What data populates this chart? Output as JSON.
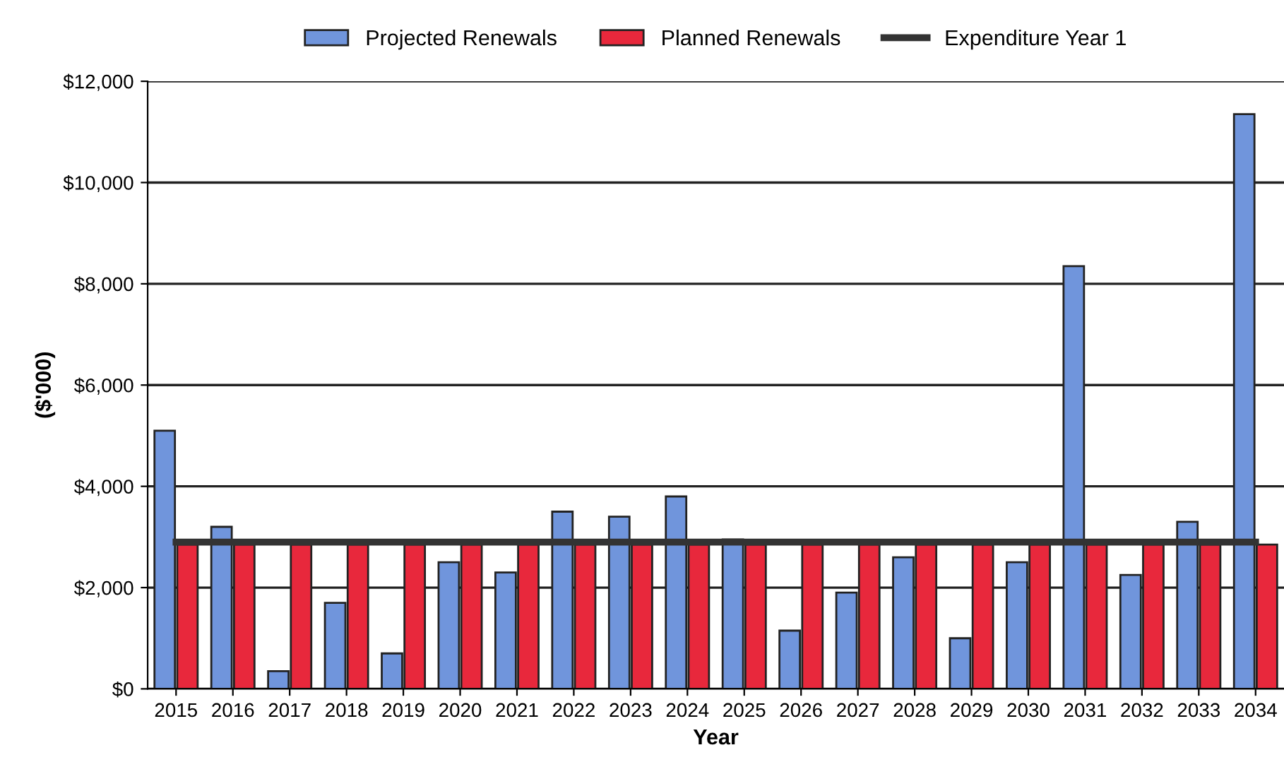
{
  "chart_data": {
    "type": "bar",
    "xlabel": "Year",
    "ylabel": "($'000)",
    "categories": [
      "2015",
      "2016",
      "2017",
      "2018",
      "2019",
      "2020",
      "2021",
      "2022",
      "2023",
      "2024",
      "2025",
      "2026",
      "2027",
      "2028",
      "2029",
      "2030",
      "2031",
      "2032",
      "2033",
      "2034"
    ],
    "series": [
      {
        "name": "Projected Renewals",
        "color": "#7095dc",
        "values": [
          5100,
          3200,
          350,
          1700,
          700,
          2500,
          2300,
          3500,
          3400,
          3800,
          2950,
          1150,
          1900,
          2600,
          1000,
          2500,
          8350,
          2250,
          3300,
          11350
        ]
      },
      {
        "name": "Planned Renewals",
        "color": "#e8283c",
        "values": [
          2850,
          2850,
          2850,
          2850,
          2850,
          2850,
          2850,
          2850,
          2850,
          2850,
          2850,
          2850,
          2850,
          2850,
          2850,
          2850,
          2850,
          2850,
          2850,
          2850
        ]
      },
      {
        "name": "Expenditure Year 1",
        "type": "line",
        "color": "#333333",
        "values": [
          2900,
          2900,
          2900,
          2900,
          2900,
          2900,
          2900,
          2900,
          2900,
          2900,
          2900,
          2900,
          2900,
          2900,
          2900,
          2900,
          2900,
          2900,
          2900,
          2900
        ]
      }
    ],
    "ylim": [
      0,
      12000
    ],
    "yticks": [
      {
        "value": 0,
        "label": "$0"
      },
      {
        "value": 2000,
        "label": "$2,000"
      },
      {
        "value": 4000,
        "label": "$4,000"
      },
      {
        "value": 6000,
        "label": "$6,000"
      },
      {
        "value": 8000,
        "label": "$8,000"
      },
      {
        "value": 10000,
        "label": "$10,000"
      },
      {
        "value": 12000,
        "label": "$12,000"
      }
    ],
    "grid": "y",
    "legend": "top"
  }
}
